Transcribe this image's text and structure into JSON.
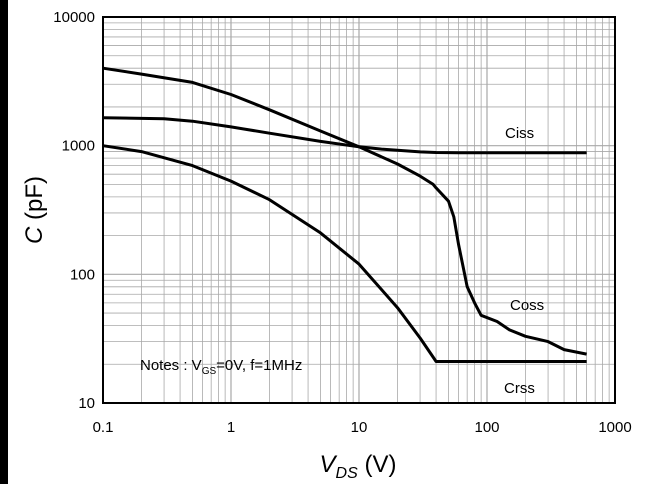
{
  "chart_data": {
    "type": "line",
    "x_scale": "log",
    "y_scale": "log",
    "xlim": [
      0.1,
      1000
    ],
    "ylim": [
      10,
      10000
    ],
    "grid": true,
    "x_ticks": [
      "0.1",
      "1",
      "10",
      "100",
      "1000"
    ],
    "y_ticks": [
      "10000",
      "1000",
      "100",
      "10"
    ],
    "xlabel": {
      "main": "V",
      "sub": "DS",
      "unit": " (V)"
    },
    "ylabel": {
      "main": "C",
      "unit": " (pF)"
    },
    "annotation": {
      "prefix": "Notes : V",
      "sub": "GS",
      "suffix": "=0V, f=1MHz"
    },
    "series": [
      {
        "name": "Ciss",
        "x": [
          0.1,
          0.3,
          0.5,
          1,
          2,
          5,
          10,
          15,
          20,
          30,
          40,
          60,
          100,
          200,
          400,
          600
        ],
        "y": [
          1650,
          1620,
          1550,
          1400,
          1250,
          1080,
          980,
          940,
          920,
          895,
          885,
          880,
          880,
          880,
          880,
          880
        ]
      },
      {
        "name": "Coss",
        "x": [
          0.1,
          0.2,
          0.5,
          1,
          2,
          5,
          10,
          20,
          30,
          38,
          40,
          50,
          55,
          60,
          70,
          80,
          90,
          120,
          150,
          200,
          300,
          400,
          600
        ],
        "y": [
          4000,
          3600,
          3100,
          2500,
          1900,
          1300,
          980,
          720,
          580,
          500,
          470,
          370,
          280,
          170,
          80,
          60,
          48,
          43,
          37,
          33,
          30,
          26,
          24
        ]
      },
      {
        "name": "Crss",
        "x": [
          0.1,
          0.2,
          0.5,
          1,
          2,
          5,
          10,
          20,
          30,
          40,
          100,
          300,
          600
        ],
        "y": [
          1000,
          900,
          700,
          530,
          380,
          210,
          120,
          55,
          32,
          21,
          21,
          21,
          21
        ]
      }
    ]
  }
}
